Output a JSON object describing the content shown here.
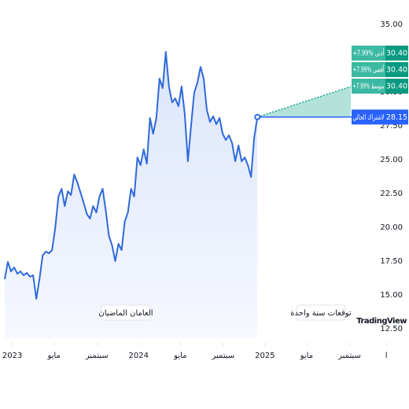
{
  "chart_data": {
    "type": "line",
    "series": [
      {
        "color": "#2f6ad9",
        "x": [
          2022.94,
          2022.965,
          2022.99,
          2023.015,
          2023.04,
          2023.065,
          2023.09,
          2023.115,
          2023.14,
          2023.165,
          2023.19,
          2023.215,
          2023.24,
          2023.265,
          2023.29,
          2023.315,
          2023.34,
          2023.365,
          2023.39,
          2023.415,
          2023.44,
          2023.465,
          2023.49,
          2023.515,
          2023.54,
          2023.565,
          2023.59,
          2023.615,
          2023.64,
          2023.665,
          2023.69,
          2023.715,
          2023.74,
          2023.765,
          2023.79,
          2023.815,
          2023.84,
          2023.865,
          2023.89,
          2023.915,
          2023.94,
          2023.965,
          2023.99,
          2024.015,
          2024.04,
          2024.065,
          2024.09,
          2024.115,
          2024.14,
          2024.165,
          2024.19,
          2024.215,
          2024.24,
          2024.265,
          2024.29,
          2024.315,
          2024.34,
          2024.365,
          2024.39,
          2024.415,
          2024.44,
          2024.465,
          2024.49,
          2024.515,
          2024.54,
          2024.565,
          2024.59,
          2024.615,
          2024.64,
          2024.665,
          2024.69,
          2024.715,
          2024.74,
          2024.765,
          2024.79,
          2024.815,
          2024.84,
          2024.865,
          2024.89,
          2024.915,
          2024.94
        ],
        "values": [
          16.16,
          17.44,
          16.74,
          17.03,
          16.57,
          16.74,
          16.45,
          16.63,
          16.34,
          16.45,
          14.71,
          16.16,
          17.91,
          18.2,
          18.08,
          18.31,
          19.94,
          22.27,
          22.85,
          21.57,
          22.67,
          22.38,
          23.9,
          23.31,
          22.56,
          21.8,
          20.99,
          20.64,
          21.57,
          21.1,
          22.27,
          22.85,
          21.22,
          19.36,
          18.66,
          17.5,
          18.78,
          18.31,
          20.41,
          21.1,
          22.85,
          22.27,
          25.17,
          24.59,
          25.76,
          24.71,
          28.08,
          26.92,
          28.08,
          30.99,
          30.29,
          32.97,
          30.41,
          29.24,
          29.53,
          28.95,
          30.41,
          28.37,
          24.88,
          27.5,
          29.94,
          30.7,
          31.86,
          30.99,
          28.66,
          27.79,
          28.2,
          27.62,
          28.08,
          26.92,
          26.45,
          26.8,
          26.22,
          24.88,
          26.05,
          24.88,
          25.17,
          24.59,
          23.72,
          26.63,
          28.15
        ]
      }
    ],
    "forecast": {
      "color": "#22ab94",
      "current": {
        "label": "لاشتراك الحالي",
        "value": 28.15,
        "value_label": "28.15",
        "color": "#2962ff"
      },
      "targets": [
        {
          "label": "+7.99% أدنى",
          "value": 30.4,
          "value_label": "30.40"
        },
        {
          "label": "+7.99% أقصى",
          "value": 30.4,
          "value_label": "30.40"
        },
        {
          "label": "+7.99% متوسط",
          "value": 30.4,
          "value_label": "30.40"
        }
      ]
    },
    "period_labels": [
      "العامان الماضيان",
      "توقعات سنة واحدة"
    ],
    "watermark": "TradingView",
    "xlim": [
      2022.94,
      2026.14
    ],
    "xticks": [
      {
        "value": 2023,
        "label": "2023"
      },
      {
        "value": 2023.33,
        "label": "مايو"
      },
      {
        "value": 2023.67,
        "label": "سبتمبر"
      },
      {
        "value": 2024,
        "label": "2024"
      },
      {
        "value": 2024.33,
        "label": "مايو"
      },
      {
        "value": 2024.67,
        "label": "سبتمبر"
      },
      {
        "value": 2025,
        "label": "2025"
      },
      {
        "value": 2025.33,
        "label": "مايو"
      },
      {
        "value": 2025.67,
        "label": "سبتمبر"
      },
      {
        "value": 2025.96,
        "label": "ا"
      }
    ],
    "ylim": [
      11.8,
      35
    ],
    "yticks": [
      {
        "value": 35,
        "label": "35.00"
      },
      {
        "value": 32.5,
        "label": "32.50"
      },
      {
        "value": 30,
        "label": "30.00"
      },
      {
        "value": 27.5,
        "label": "27.50"
      },
      {
        "value": 25,
        "label": "25.00"
      },
      {
        "value": 22.5,
        "label": "22.50"
      },
      {
        "value": 20,
        "label": "20.00"
      },
      {
        "value": 17.5,
        "label": "17.50"
      },
      {
        "value": 15,
        "label": "15.00"
      },
      {
        "value": 12.5,
        "label": "12.50"
      }
    ]
  }
}
